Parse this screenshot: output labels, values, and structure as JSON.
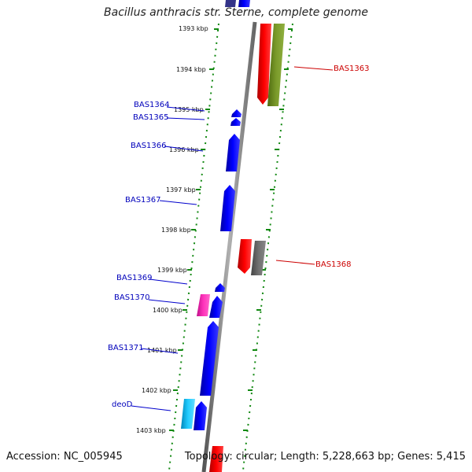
{
  "title": "Bacillus anthracis str. Sterne, complete genome",
  "accession_label": "Accession: NC_005945",
  "summary_label": "Topology: circular; Length: 5,228,663 bp; Genes: 5,415",
  "colors": {
    "backbone": "#8a8a8a",
    "tick": "#118811",
    "plus_gene": "#0000ee",
    "minus_gene": "#ee0000",
    "label_left": "#0000bb",
    "label_right": "#cc0000"
  },
  "ticks": [
    "1393 kbp",
    "1394 kbp",
    "1395 kbp",
    "1396 kbp",
    "1397 kbp",
    "1398 kbp",
    "1399 kbp",
    "1400 kbp",
    "1401 kbp",
    "1402 kbp",
    "1403 kbp"
  ],
  "left_gene_labels": [
    "BAS1364",
    "BAS1365",
    "BAS1366",
    "BAS1367",
    "BAS1369",
    "BAS1370",
    "BAS1371",
    "deoD"
  ],
  "right_gene_labels": [
    "BAS1363",
    "BAS1368"
  ]
}
